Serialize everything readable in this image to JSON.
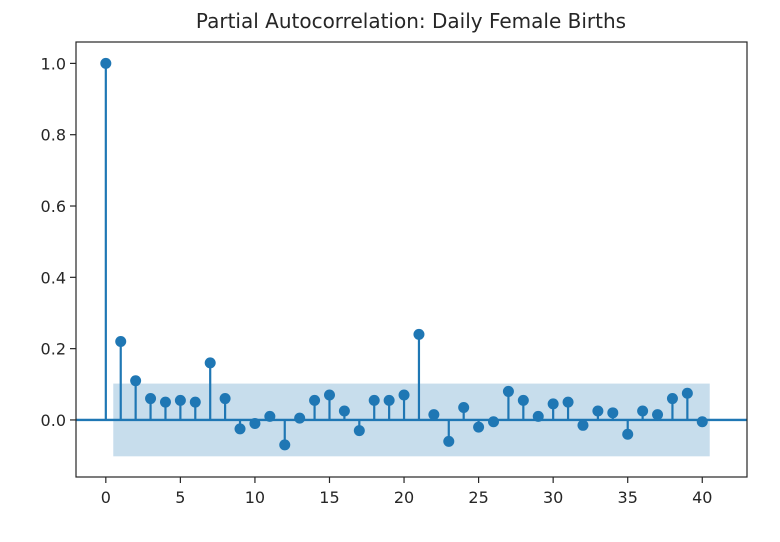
{
  "chart_data": {
    "type": "stem",
    "title": "Partial Autocorrelation: Daily Female Births",
    "xlabel": "",
    "ylabel": "",
    "x": [
      0,
      1,
      2,
      3,
      4,
      5,
      6,
      7,
      8,
      9,
      10,
      11,
      12,
      13,
      14,
      15,
      16,
      17,
      18,
      19,
      20,
      21,
      22,
      23,
      24,
      25,
      26,
      27,
      28,
      29,
      30,
      31,
      32,
      33,
      34,
      35,
      36,
      37,
      38,
      39,
      40
    ],
    "values": [
      1.0,
      0.22,
      0.11,
      0.06,
      0.05,
      0.055,
      0.05,
      0.16,
      0.06,
      -0.025,
      -0.01,
      0.01,
      -0.07,
      0.005,
      0.055,
      0.07,
      0.025,
      -0.03,
      0.055,
      0.055,
      0.07,
      0.24,
      0.015,
      -0.06,
      0.035,
      -0.02,
      -0.005,
      0.08,
      0.055,
      0.01,
      0.045,
      0.05,
      -0.015,
      0.025,
      0.02,
      -0.04,
      0.025,
      0.015,
      0.06,
      0.075,
      -0.005
    ],
    "confidence_band": [
      -0.102,
      0.102
    ],
    "xlim": [
      -2,
      43
    ],
    "ylim": [
      -0.16,
      1.06
    ],
    "xticks": [
      0,
      5,
      10,
      15,
      20,
      25,
      30,
      35,
      40
    ],
    "yticks": [
      0.0,
      0.2,
      0.4,
      0.6,
      0.8,
      1.0
    ],
    "ytick_labels": [
      "0.0",
      "0.2",
      "0.4",
      "0.6",
      "0.8",
      "1.0"
    ],
    "grid": false,
    "colors": {
      "stem": "#1f77b4",
      "band": "#1f77b4",
      "axes": "#262626"
    }
  }
}
